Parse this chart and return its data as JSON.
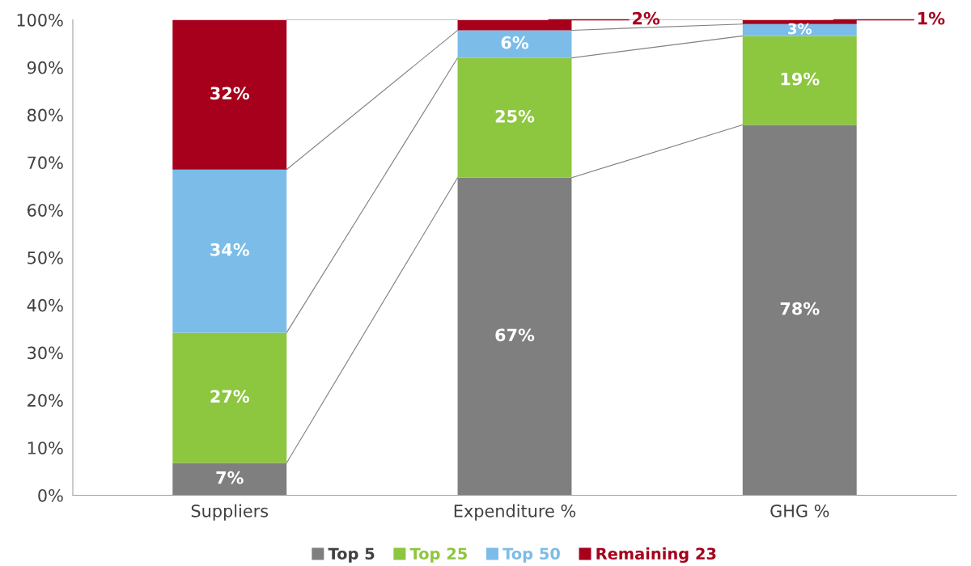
{
  "chart_data": {
    "type": "bar",
    "stacked": true,
    "categories": [
      "Suppliers",
      "Expenditure %",
      "GHG %"
    ],
    "series": [
      {
        "name": "Top 5",
        "color": "#7f7f7f",
        "values": [
          6.8,
          66.8,
          77.9
        ],
        "value_labels": [
          "7%",
          "67%",
          "78%"
        ]
      },
      {
        "name": "Top 25",
        "color": "#8dc63f",
        "values": [
          27.4,
          25.2,
          18.7
        ],
        "value_labels": [
          "27%",
          "25%",
          "19%"
        ]
      },
      {
        "name": "Top 50",
        "color": "#7bbde8",
        "values": [
          34.3,
          5.8,
          2.5
        ],
        "value_labels": [
          "34%",
          "6%",
          "3%"
        ]
      },
      {
        "name": "Remaining 23",
        "color": "#a6001c",
        "values": [
          31.5,
          2.2,
          0.9
        ],
        "value_labels": [
          "32%",
          "2%",
          "1%"
        ]
      }
    ],
    "ylim": [
      0,
      100
    ],
    "yticks": [
      {
        "value": 0,
        "label": "0%"
      },
      {
        "value": 10,
        "label": "10%"
      },
      {
        "value": 20,
        "label": "20%"
      },
      {
        "value": 30,
        "label": "30%"
      },
      {
        "value": 40,
        "label": "40%"
      },
      {
        "value": 50,
        "label": "50%"
      },
      {
        "value": 60,
        "label": "60%"
      },
      {
        "value": 70,
        "label": "70%"
      },
      {
        "value": 80,
        "label": "80%"
      },
      {
        "value": 90,
        "label": "90%"
      },
      {
        "value": 100,
        "label": "100%"
      }
    ],
    "grid": false,
    "legend": "bottom"
  }
}
